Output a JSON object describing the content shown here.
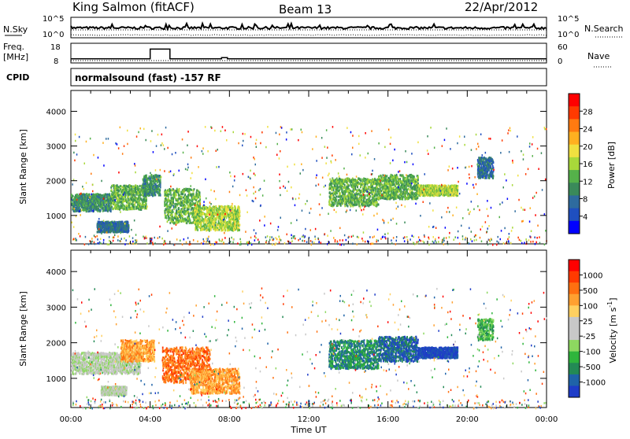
{
  "header": {
    "station": "King Salmon (fitACF)",
    "beam": "Beam 13",
    "date": "22/Apr/2012"
  },
  "sky_panel": {
    "left_label": "N.Sky",
    "right_label": "N.Search",
    "left_ticks": [
      "10^5",
      "10^0"
    ],
    "right_ticks": [
      "10^5",
      "10^0"
    ]
  },
  "freq_panel": {
    "left_label_line1": "Freq.",
    "left_label_line2": "[MHz]",
    "right_label": "Nave",
    "left_ticks": [
      "18",
      "8"
    ],
    "right_ticks": [
      "60",
      "0"
    ],
    "freq_steps": [
      {
        "t0": 0.0,
        "t1": 4.0,
        "mhz": 10.5
      },
      {
        "t0": 4.0,
        "t1": 5.0,
        "mhz": 16.4
      },
      {
        "t0": 5.0,
        "t1": 7.6,
        "mhz": 10.5
      },
      {
        "t0": 7.6,
        "t1": 7.9,
        "mhz": 11.2
      },
      {
        "t0": 7.9,
        "t1": 24.0,
        "mhz": 10.5
      }
    ]
  },
  "cpid": {
    "label": "CPID",
    "text": "normalsound (fast) -157 RF"
  },
  "chart_data": [
    {
      "type": "heatmap",
      "name": "power",
      "ylabel": "Slant Range [km]",
      "xlabel": "Time UT",
      "x_ticks": [
        "00:00",
        "04:00",
        "08:00",
        "12:00",
        "16:00",
        "20:00",
        "00:00"
      ],
      "y_ticks": [
        "1000",
        "2000",
        "3000",
        "4000"
      ],
      "xlim_hours": [
        0,
        24
      ],
      "ylim_km": [
        180,
        4600
      ],
      "colorbar": {
        "label": "Power [dB]",
        "ticks": [
          "4",
          "8",
          "12",
          "16",
          "20",
          "24",
          "28"
        ],
        "colors": [
          "#0000ff",
          "#1f4fbf",
          "#2e6b9e",
          "#3a8a5a",
          "#55b14a",
          "#a8d83a",
          "#f0e040",
          "#ffb020",
          "#ff7a10",
          "#ff3a00",
          "#ff0000"
        ]
      },
      "echo_regions": [
        {
          "t0": 0.0,
          "t1": 2.0,
          "r0": 1150,
          "r1": 1650,
          "level": 3
        },
        {
          "t0": 2.0,
          "t1": 3.8,
          "r0": 1200,
          "r1": 1900,
          "level": 4
        },
        {
          "t0": 1.3,
          "t1": 2.9,
          "r0": 550,
          "r1": 850,
          "level": 2
        },
        {
          "t0": 3.6,
          "t1": 4.5,
          "r0": 1600,
          "r1": 2200,
          "level": 3
        },
        {
          "t0": 4.7,
          "t1": 6.5,
          "r0": 800,
          "r1": 1800,
          "level": 4
        },
        {
          "t0": 6.2,
          "t1": 8.5,
          "r0": 600,
          "r1": 1300,
          "level": 5
        },
        {
          "t0": 13.0,
          "t1": 15.5,
          "r0": 1300,
          "r1": 2100,
          "level": 4
        },
        {
          "t0": 15.5,
          "t1": 17.5,
          "r0": 1500,
          "r1": 2200,
          "level": 4
        },
        {
          "t0": 17.5,
          "t1": 19.5,
          "r0": 1600,
          "r1": 1900,
          "level": 5
        },
        {
          "t0": 20.5,
          "t1": 21.3,
          "r0": 2100,
          "r1": 2700,
          "level": 2
        }
      ]
    },
    {
      "type": "heatmap",
      "name": "velocity",
      "ylabel": "Slant Range [km]",
      "xlabel": "Time UT",
      "x_ticks": [
        "00:00",
        "04:00",
        "08:00",
        "12:00",
        "16:00",
        "20:00",
        "00:00"
      ],
      "y_ticks": [
        "1000",
        "2000",
        "3000",
        "4000"
      ],
      "xlim_hours": [
        0,
        24
      ],
      "ylim_km": [
        180,
        4600
      ],
      "colorbar": {
        "label": "Velocity [m s",
        "label_sup": "-1",
        "label_end": "]",
        "ticks": [
          "1000",
          "500",
          "100",
          "25",
          "-25",
          "-100",
          "-500",
          "-1000"
        ],
        "colors": [
          "#1e3cc8",
          "#1f63a8",
          "#238a55",
          "#2fb53c",
          "#8dd860",
          "#c8c8c8",
          "#c8c8c8",
          "#ffd060",
          "#ffa030",
          "#ff7010",
          "#ff3a00",
          "#ff0000"
        ]
      },
      "echo_regions": [
        {
          "t0": 0.0,
          "t1": 3.5,
          "r0": 1150,
          "r1": 1750,
          "level": 5
        },
        {
          "t0": 2.5,
          "t1": 4.2,
          "r0": 1500,
          "r1": 2100,
          "level": 8
        },
        {
          "t0": 1.5,
          "t1": 2.8,
          "r0": 550,
          "r1": 800,
          "level": 5
        },
        {
          "t0": 4.6,
          "t1": 7.0,
          "r0": 900,
          "r1": 1900,
          "level": 9
        },
        {
          "t0": 6.0,
          "t1": 8.5,
          "r0": 600,
          "r1": 1300,
          "level": 8
        },
        {
          "t0": 13.0,
          "t1": 15.5,
          "r0": 1300,
          "r1": 2100,
          "level": 2
        },
        {
          "t0": 15.5,
          "t1": 17.5,
          "r0": 1500,
          "r1": 2200,
          "level": 1
        },
        {
          "t0": 17.5,
          "t1": 19.5,
          "r0": 1600,
          "r1": 1900,
          "level": 0
        },
        {
          "t0": 20.5,
          "t1": 21.3,
          "r0": 2100,
          "r1": 2700,
          "level": 3
        }
      ]
    }
  ]
}
